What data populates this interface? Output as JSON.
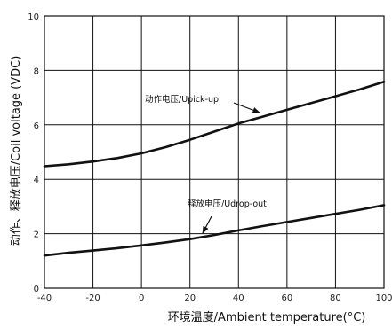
{
  "chart_data": {
    "type": "line",
    "xlabel": "环境温度/Ambient temperature(°C)",
    "ylabel": "动作、释放电压/Coil voltage (VDC)",
    "xlim": [
      -40,
      100
    ],
    "ylim": [
      0,
      10
    ],
    "xticks": [
      -40,
      -20,
      0,
      20,
      40,
      60,
      80,
      100
    ],
    "yticks": [
      0,
      2,
      4,
      6,
      8,
      10
    ],
    "grid": true,
    "series": [
      {
        "name": "动作电压/Upick-up",
        "x": [
          -40,
          -30,
          -20,
          -10,
          0,
          10,
          20,
          30,
          40,
          50,
          60,
          70,
          80,
          90,
          100
        ],
        "y": [
          4.48,
          4.55,
          4.65,
          4.78,
          4.95,
          5.18,
          5.45,
          5.75,
          6.05,
          6.3,
          6.55,
          6.8,
          7.05,
          7.3,
          7.58
        ]
      },
      {
        "name": "释放电压/Udrop-out",
        "x": [
          -40,
          -30,
          -20,
          -10,
          0,
          10,
          20,
          30,
          40,
          50,
          60,
          70,
          80,
          90,
          100
        ],
        "y": [
          1.2,
          1.3,
          1.38,
          1.47,
          1.57,
          1.68,
          1.8,
          1.95,
          2.12,
          2.28,
          2.43,
          2.58,
          2.73,
          2.88,
          3.05
        ]
      }
    ],
    "annotations": [
      {
        "text": "动作电压/Upick-up",
        "series": 0
      },
      {
        "text": "释放电压/Udrop-out",
        "series": 1
      }
    ]
  }
}
